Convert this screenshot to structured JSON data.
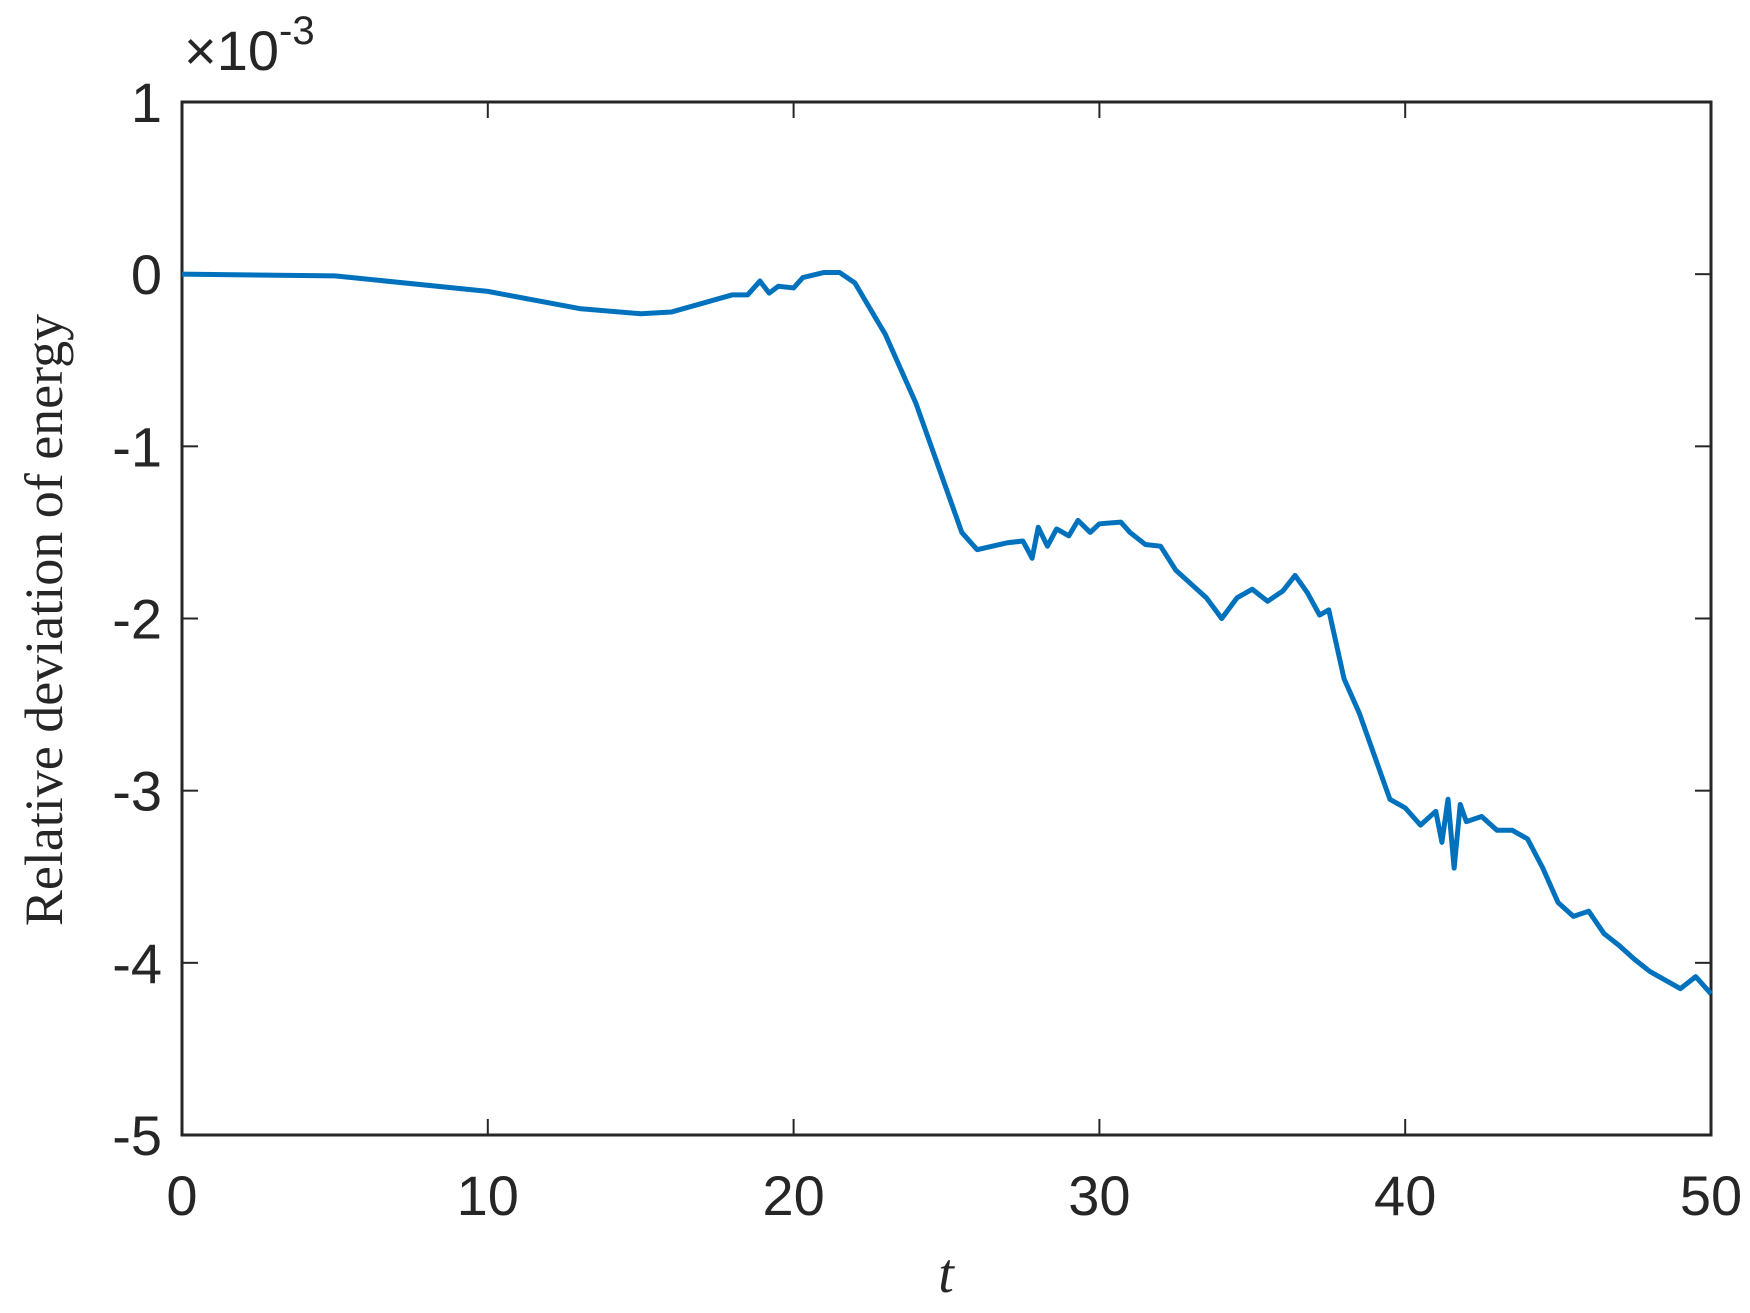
{
  "chart_data": {
    "type": "line",
    "x_label": "t",
    "y_label": "Relative deviation of energy",
    "y_multiplier": "×10",
    "y_multiplier_exponent": "-3",
    "xlim": [
      0,
      50
    ],
    "xticks": [
      0,
      10,
      20,
      30,
      40,
      50
    ],
    "ylim": [
      -5,
      1
    ],
    "yticks": [
      -5,
      -4,
      -3,
      -2,
      -1,
      0,
      1
    ],
    "grid": false,
    "x": [
      0,
      5,
      10,
      13,
      15,
      16,
      17,
      18,
      18.5,
      18.9,
      19.2,
      19.5,
      20,
      20.3,
      21,
      21.5,
      22,
      22.5,
      23,
      23.5,
      24,
      24.5,
      25,
      25.5,
      26,
      26.5,
      27,
      27.5,
      27.8,
      28,
      28.3,
      28.6,
      29,
      29.3,
      29.7,
      30,
      30.7,
      31,
      31.5,
      32,
      32.5,
      33,
      33.5,
      34,
      34.5,
      35,
      35.5,
      36,
      36.4,
      36.8,
      37.2,
      37.5,
      38,
      38.5,
      39,
      39.5,
      40,
      40.5,
      41,
      41.2,
      41.4,
      41.6,
      41.8,
      42,
      42.5,
      43,
      43.5,
      44,
      44.5,
      45,
      45.5,
      46,
      46.5,
      47,
      47.5,
      48,
      48.5,
      49,
      49.5,
      50
    ],
    "series": [
      {
        "color": "#0072bd",
        "values": [
          0,
          -0.01,
          -0.1,
          -0.2,
          -0.23,
          -0.22,
          -0.17,
          -0.12,
          -0.12,
          -0.04,
          -0.11,
          -0.07,
          -0.08,
          -0.02,
          0.01,
          0.01,
          -0.05,
          -0.2,
          -0.35,
          -0.55,
          -0.75,
          -1.0,
          -1.25,
          -1.5,
          -1.6,
          -1.58,
          -1.56,
          -1.55,
          -1.65,
          -1.47,
          -1.58,
          -1.48,
          -1.52,
          -1.43,
          -1.5,
          -1.45,
          -1.44,
          -1.5,
          -1.57,
          -1.58,
          -1.72,
          -1.8,
          -1.88,
          -2.0,
          -1.88,
          -1.83,
          -1.9,
          -1.84,
          -1.75,
          -1.85,
          -1.98,
          -1.95,
          -2.35,
          -2.55,
          -2.8,
          -3.05,
          -3.1,
          -3.2,
          -3.12,
          -3.3,
          -3.05,
          -3.45,
          -3.08,
          -3.18,
          -3.15,
          -3.23,
          -3.23,
          -3.28,
          -3.45,
          -3.65,
          -3.73,
          -3.7,
          -3.83,
          -3.9,
          -3.98,
          -4.05,
          -4.1,
          -4.15,
          -4.08,
          -4.18
        ]
      }
    ]
  }
}
